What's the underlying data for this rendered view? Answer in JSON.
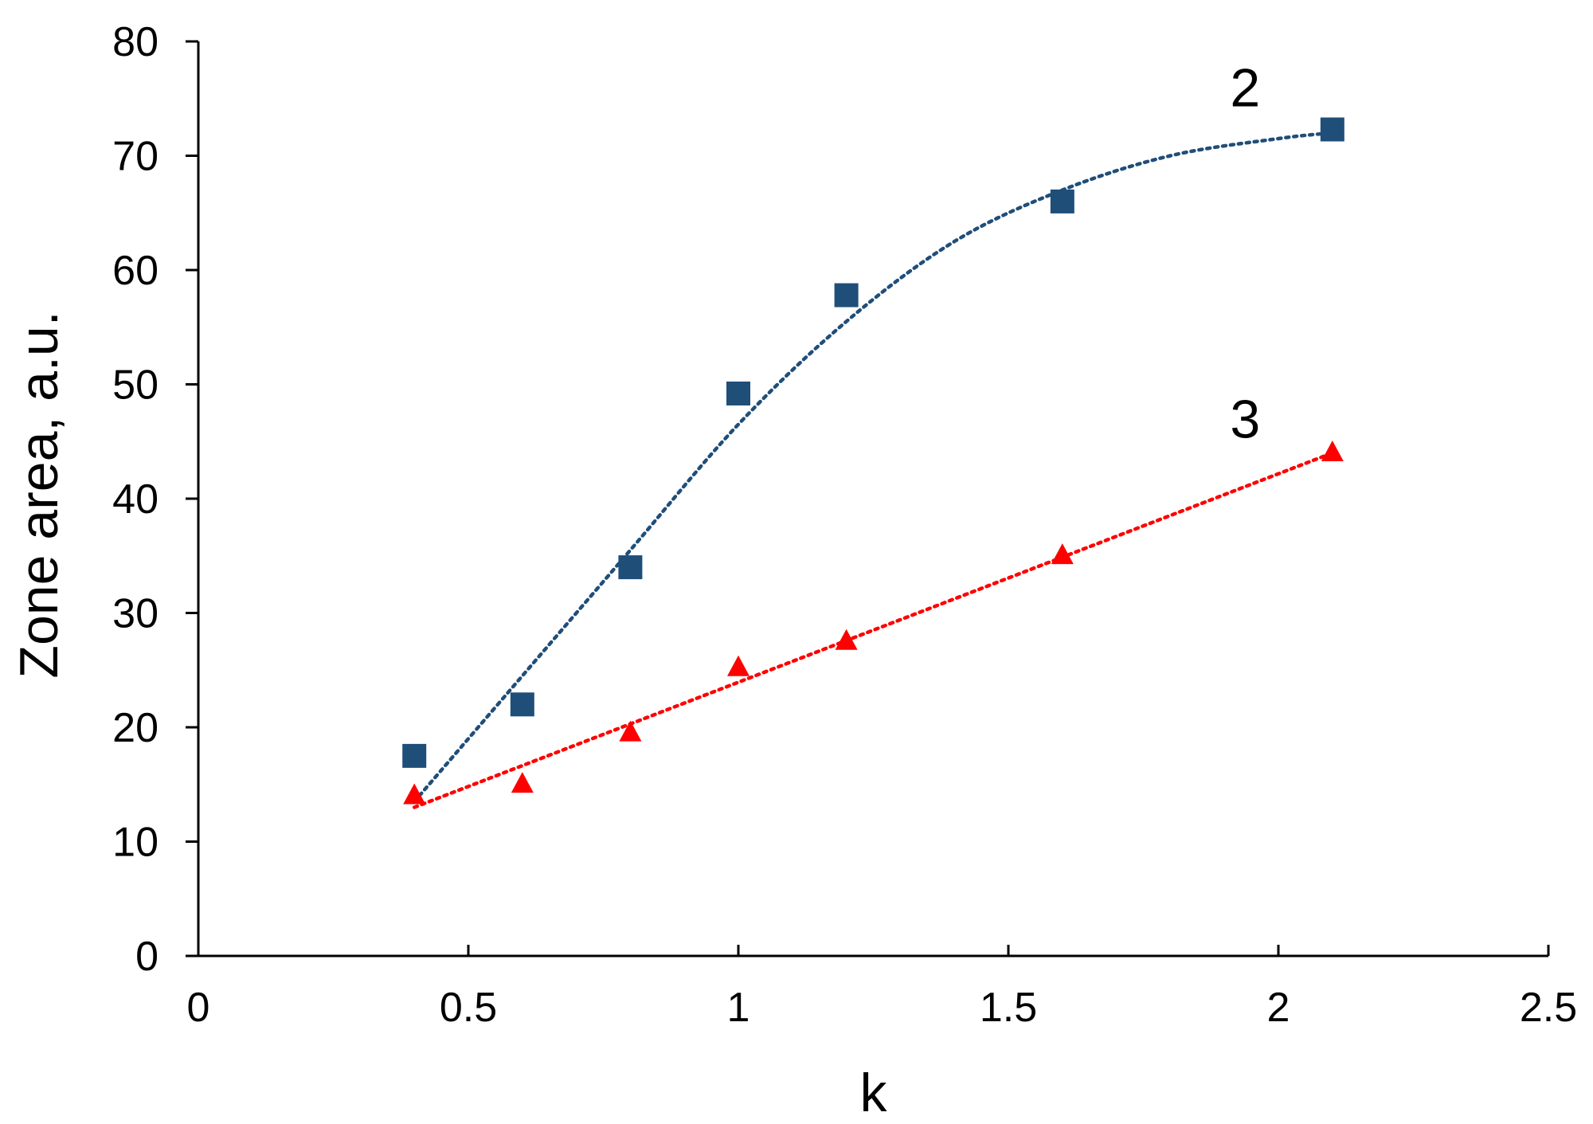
{
  "chart_data": {
    "type": "scatter",
    "title": "",
    "xlabel": "k",
    "ylabel": "Zone area, a.u.",
    "xlim": [
      0,
      2.5
    ],
    "ylim": [
      0,
      80
    ],
    "x_ticks": [
      0,
      0.5,
      1,
      1.5,
      2,
      2.5
    ],
    "x_tick_labels": [
      "0",
      "0.5",
      "1",
      "1.5",
      "2",
      "2.5"
    ],
    "y_ticks": [
      0,
      10,
      20,
      30,
      40,
      50,
      60,
      70,
      80
    ],
    "y_tick_labels": [
      "0",
      "10",
      "20",
      "30",
      "40",
      "50",
      "60",
      "70",
      "80"
    ],
    "grid": false,
    "legend": "none",
    "series": [
      {
        "name": "2",
        "marker": "square",
        "color": "#1f4e79",
        "x": [
          0.4,
          0.6,
          0.8,
          1.0,
          1.2,
          1.6,
          2.1
        ],
        "y": [
          17.5,
          22,
          34,
          49.2,
          57.8,
          66,
          72.3
        ],
        "trendline": {
          "style": "dotted",
          "x": [
            0.4,
            0.6,
            0.8,
            1.0,
            1.2,
            1.4,
            1.6,
            1.8,
            2.0,
            2.1
          ],
          "y": [
            13.5,
            24.5,
            35.5,
            46.5,
            55.5,
            62.5,
            67,
            70,
            71.5,
            72
          ]
        }
      },
      {
        "name": "3",
        "marker": "triangle",
        "color": "#ff0000",
        "x": [
          0.4,
          0.6,
          0.8,
          1.0,
          1.2,
          1.6,
          2.1
        ],
        "y": [
          14,
          15,
          19.5,
          25.2,
          27.5,
          35,
          44
        ],
        "trendline": {
          "style": "dotted",
          "x": [
            0.4,
            2.1
          ],
          "y": [
            13,
            44
          ]
        }
      }
    ],
    "annotations": [
      {
        "text": "2",
        "x": 1.85,
        "y": 76
      },
      {
        "text": "3",
        "x": 1.85,
        "y": 47
      }
    ]
  }
}
